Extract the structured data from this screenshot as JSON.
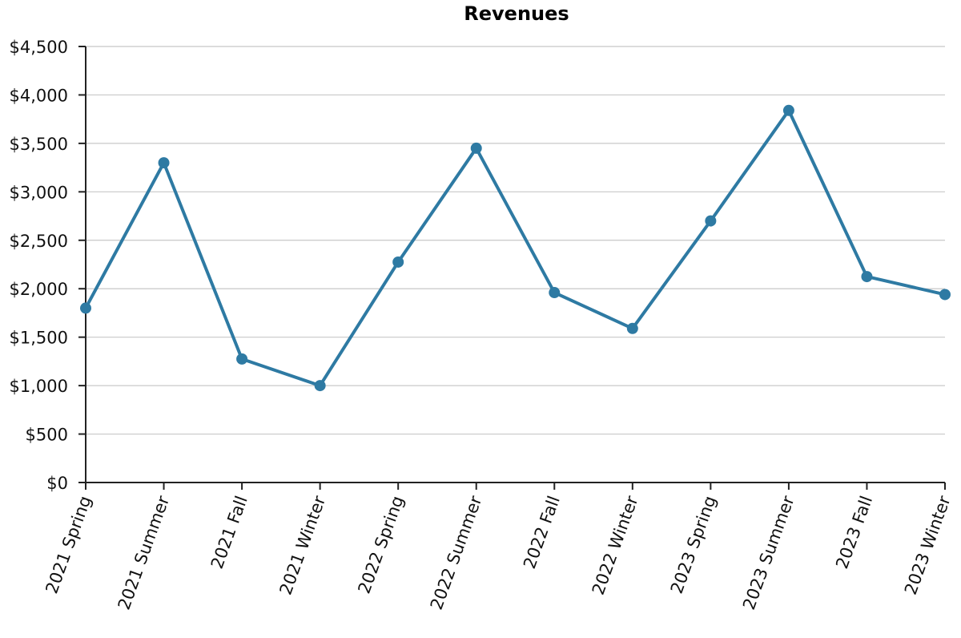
{
  "chart_data": {
    "type": "line",
    "title": "Revenues",
    "xlabel": "",
    "ylabel": "",
    "categories": [
      "2021 Spring",
      "2021 Summer",
      "2021 Fall",
      "2021 Winter",
      "2022 Spring",
      "2022 Summer",
      "2022 Fall",
      "2022 Winter",
      "2023 Spring",
      "2023 Summer",
      "2023 Fall",
      "2023 Winter"
    ],
    "series": [
      {
        "values": [
          1800,
          3300,
          1275,
          1000,
          2275,
          3450,
          1960,
          1590,
          2700,
          3840,
          2125,
          1940
        ]
      }
    ],
    "ylim": [
      0,
      4500
    ],
    "yticks": [
      0,
      500,
      1000,
      1500,
      2000,
      2500,
      3000,
      3500,
      4000,
      4500
    ],
    "ytick_labels": [
      "$0",
      "$500",
      "$1,000",
      "$1,500",
      "$2,000",
      "$2,500",
      "$3,000",
      "$3,500",
      "$4,000",
      "$4,500"
    ],
    "grid": true,
    "legend": "none",
    "color": "#2e7aa3"
  }
}
